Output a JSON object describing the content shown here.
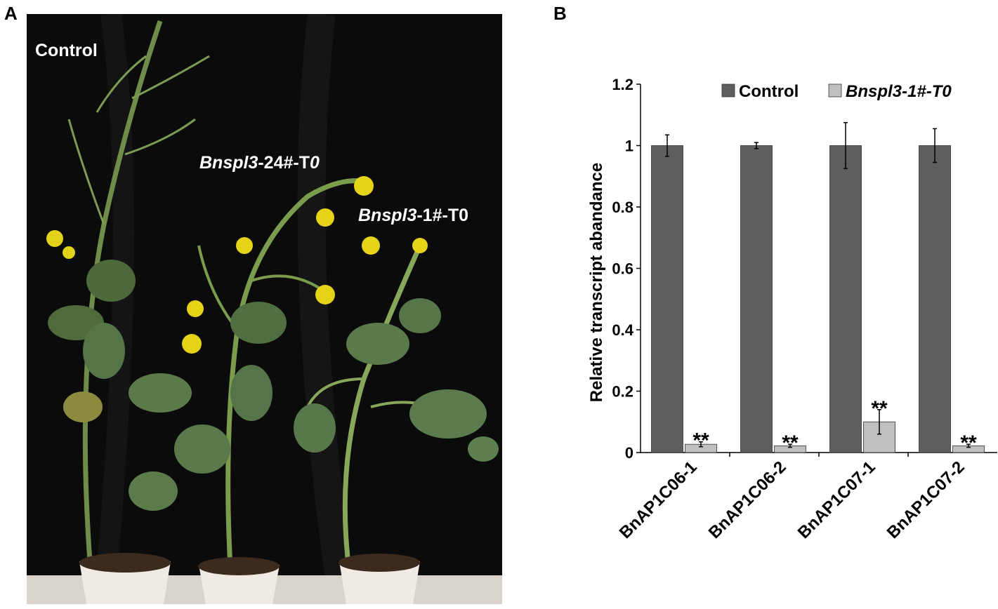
{
  "panels": {
    "a_letter": "A",
    "b_letter": "B"
  },
  "photo": {
    "labels": {
      "control": "Control",
      "line24_italic": "Bnspl3",
      "line24_rest": "-24#-T",
      "line24_italic_end": "0",
      "line1_italic": "Bnspl3",
      "line1_rest": "-1#-T0"
    }
  },
  "chart_data": {
    "type": "bar",
    "categories": [
      "BnAP1C06-1",
      "BnAP1C06-2",
      "BnAP1C07-1",
      "BnAP1C07-2"
    ],
    "series": [
      {
        "name": "Control",
        "values": [
          1.0,
          1.0,
          1.0,
          1.0
        ],
        "errors": [
          0.035,
          0.01,
          0.075,
          0.055
        ],
        "color": "#5e5e5e"
      },
      {
        "name": "Bnspl3-1#-T0",
        "values": [
          0.027,
          0.022,
          0.1,
          0.022
        ],
        "errors": [
          0.008,
          0.005,
          0.04,
          0.005
        ],
        "color": "#bfbfbf"
      }
    ],
    "significance": [
      "**",
      "**",
      "**",
      "**"
    ],
    "ylabel": "Relative transcript abandance",
    "xlabel": "",
    "ylim": [
      0,
      1.2
    ],
    "yticks": [
      "0",
      "0.2",
      "0.4",
      "0.6",
      "0.8",
      "1",
      "1.2"
    ],
    "grid": false,
    "legend_position": "top-right"
  }
}
